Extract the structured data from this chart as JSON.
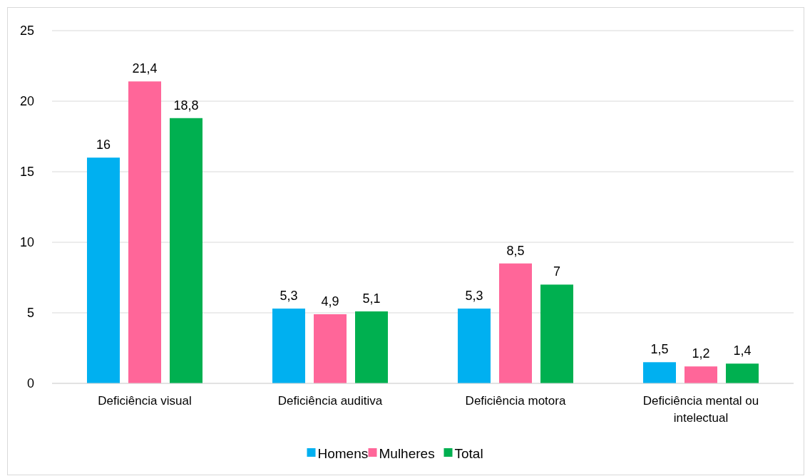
{
  "chart_data": {
    "type": "bar",
    "categories": [
      "Deficiência visual",
      "Deficiência auditiva",
      "Deficiência motora",
      "Deficiência mental ou intelectual"
    ],
    "series": [
      {
        "name": "Homens",
        "color": "#00b0f0",
        "values": [
          16,
          5.3,
          5.3,
          1.5
        ],
        "value_labels": [
          "16",
          "5,3",
          "5,3",
          "1,5"
        ]
      },
      {
        "name": "Mulheres",
        "color": "#ff6699",
        "values": [
          21.4,
          4.9,
          8.5,
          1.2
        ],
        "value_labels": [
          "21,4",
          "4,9",
          "8,5",
          "1,2"
        ]
      },
      {
        "name": "Total",
        "color": "#00b050",
        "values": [
          18.8,
          5.1,
          7,
          1.4
        ],
        "value_labels": [
          "18,8",
          "5,1",
          "7",
          "1,4"
        ]
      }
    ],
    "ylim": [
      0,
      25
    ],
    "yticks": [
      0,
      5,
      10,
      15,
      20,
      25
    ],
    "grid": "y",
    "legend": "bottom"
  }
}
